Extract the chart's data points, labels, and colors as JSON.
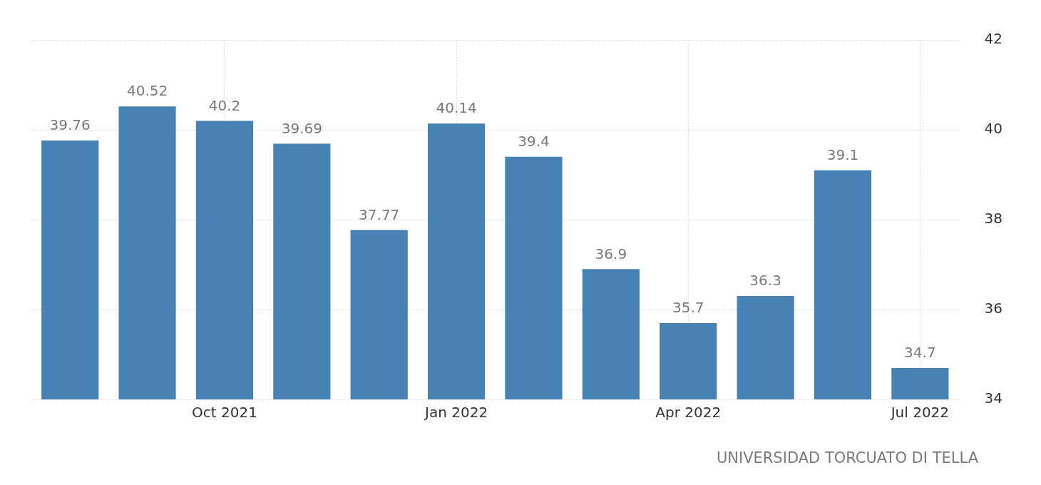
{
  "chart_data": {
    "type": "bar",
    "categories": [
      null,
      null,
      "Oct 2021",
      null,
      null,
      "Jan 2022",
      null,
      null,
      "Apr 2022",
      null,
      null,
      "Jul 2022"
    ],
    "values": [
      39.76,
      40.52,
      40.2,
      39.69,
      37.77,
      40.14,
      39.4,
      36.9,
      35.7,
      36.3,
      39.1,
      34.7
    ],
    "color": "#4682b4",
    "ylim": [
      34,
      42
    ],
    "yticks": [
      34,
      36,
      38,
      40,
      42
    ],
    "grid": true,
    "data_labels": true,
    "annotations": [
      "UNIVERSIDAD TORCUATO DI TELLA"
    ]
  }
}
